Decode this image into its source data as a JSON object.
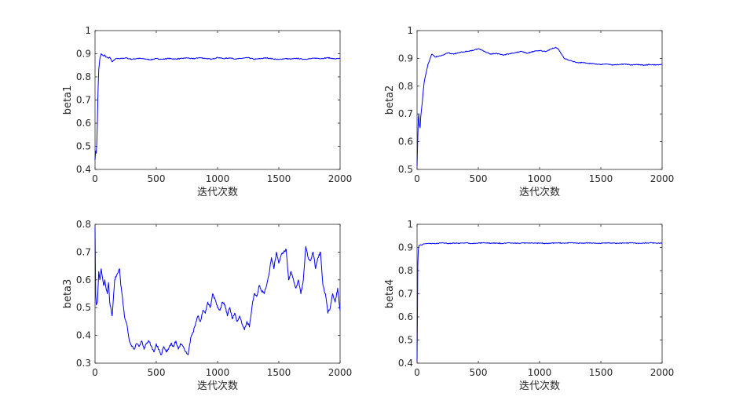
{
  "chart_data": [
    {
      "type": "line",
      "xlabel": "迭代次数",
      "ylabel": "beta1",
      "xlim": [
        0,
        2000
      ],
      "ylim": [
        0.4,
        1
      ],
      "xticks": [
        "0",
        "500",
        "1000",
        "1500",
        "2000"
      ],
      "yticks": [
        "0.4",
        "0.5",
        "0.6",
        "0.7",
        "0.8",
        "0.9",
        "1"
      ],
      "color": "#0000ff",
      "grid": false,
      "x": [
        0,
        5,
        10,
        15,
        20,
        25,
        30,
        40,
        50,
        60,
        70,
        80,
        90,
        100,
        110,
        120,
        130,
        140,
        150,
        160,
        180,
        200,
        250,
        300,
        350,
        400,
        450,
        500,
        550,
        600,
        650,
        700,
        750,
        800,
        850,
        900,
        950,
        1000,
        1050,
        1100,
        1150,
        1200,
        1250,
        1300,
        1350,
        1400,
        1450,
        1500,
        1550,
        1600,
        1650,
        1700,
        1750,
        1800,
        1850,
        1900,
        1950,
        2000
      ],
      "values": [
        0.44,
        0.48,
        0.47,
        0.52,
        0.62,
        0.75,
        0.83,
        0.88,
        0.9,
        0.895,
        0.89,
        0.895,
        0.885,
        0.885,
        0.88,
        0.885,
        0.875,
        0.865,
        0.87,
        0.875,
        0.88,
        0.878,
        0.882,
        0.876,
        0.88,
        0.878,
        0.874,
        0.879,
        0.876,
        0.88,
        0.877,
        0.879,
        0.882,
        0.878,
        0.883,
        0.88,
        0.876,
        0.884,
        0.879,
        0.882,
        0.877,
        0.88,
        0.883,
        0.876,
        0.879,
        0.882,
        0.878,
        0.875,
        0.879,
        0.877,
        0.88,
        0.876,
        0.878,
        0.881,
        0.879,
        0.883,
        0.878,
        0.879
      ]
    },
    {
      "type": "line",
      "xlabel": "迭代次数",
      "ylabel": "beta2",
      "xlim": [
        0,
        2000
      ],
      "ylim": [
        0.5,
        1
      ],
      "xticks": [
        "0",
        "500",
        "1000",
        "1500",
        "2000"
      ],
      "yticks": [
        "0.5",
        "0.6",
        "0.7",
        "0.8",
        "0.9",
        "1"
      ],
      "color": "#0000ff",
      "grid": false,
      "x": [
        0,
        5,
        10,
        15,
        20,
        25,
        30,
        40,
        50,
        60,
        70,
        80,
        90,
        100,
        120,
        150,
        200,
        250,
        300,
        350,
        400,
        450,
        500,
        550,
        600,
        650,
        700,
        750,
        800,
        850,
        900,
        950,
        1000,
        1050,
        1100,
        1130,
        1150,
        1180,
        1200,
        1250,
        1300,
        1350,
        1400,
        1450,
        1500,
        1550,
        1600,
        1650,
        1700,
        1750,
        1800,
        1850,
        1900,
        1950,
        2000
      ],
      "values": [
        0.51,
        0.6,
        0.68,
        0.7,
        0.66,
        0.65,
        0.69,
        0.73,
        0.78,
        0.82,
        0.84,
        0.86,
        0.88,
        0.89,
        0.915,
        0.905,
        0.91,
        0.92,
        0.915,
        0.922,
        0.925,
        0.928,
        0.935,
        0.925,
        0.915,
        0.918,
        0.912,
        0.916,
        0.92,
        0.925,
        0.918,
        0.925,
        0.928,
        0.925,
        0.935,
        0.94,
        0.935,
        0.915,
        0.9,
        0.892,
        0.885,
        0.885,
        0.882,
        0.88,
        0.878,
        0.88,
        0.876,
        0.878,
        0.88,
        0.876,
        0.878,
        0.875,
        0.878,
        0.876,
        0.878
      ]
    },
    {
      "type": "line",
      "xlabel": "迭代次数",
      "ylabel": "beta3",
      "xlim": [
        0,
        2000
      ],
      "ylim": [
        0.3,
        0.8
      ],
      "xticks": [
        "0",
        "500",
        "1000",
        "1500",
        "2000"
      ],
      "yticks": [
        "0.3",
        "0.4",
        "0.5",
        "0.6",
        "0.7",
        "0.8"
      ],
      "color": "#0000ff",
      "grid": false,
      "x": [
        0,
        5,
        10,
        20,
        30,
        40,
        50,
        60,
        70,
        80,
        90,
        100,
        110,
        120,
        140,
        160,
        180,
        200,
        210,
        220,
        240,
        260,
        280,
        300,
        320,
        340,
        360,
        380,
        400,
        420,
        440,
        460,
        480,
        500,
        520,
        540,
        560,
        580,
        600,
        620,
        640,
        660,
        680,
        700,
        720,
        740,
        760,
        780,
        800,
        820,
        840,
        860,
        880,
        900,
        920,
        940,
        960,
        980,
        1000,
        1020,
        1040,
        1060,
        1080,
        1100,
        1120,
        1140,
        1160,
        1180,
        1200,
        1220,
        1240,
        1260,
        1280,
        1300,
        1320,
        1340,
        1360,
        1380,
        1400,
        1420,
        1440,
        1460,
        1480,
        1500,
        1520,
        1540,
        1560,
        1580,
        1600,
        1620,
        1640,
        1660,
        1680,
        1700,
        1720,
        1740,
        1760,
        1780,
        1800,
        1820,
        1840,
        1860,
        1880,
        1900,
        1920,
        1940,
        1960,
        1980,
        2000
      ],
      "values": [
        0.79,
        0.55,
        0.51,
        0.52,
        0.63,
        0.6,
        0.64,
        0.61,
        0.58,
        0.6,
        0.57,
        0.55,
        0.59,
        0.52,
        0.47,
        0.6,
        0.62,
        0.64,
        0.58,
        0.55,
        0.47,
        0.44,
        0.38,
        0.36,
        0.35,
        0.37,
        0.36,
        0.38,
        0.35,
        0.37,
        0.38,
        0.36,
        0.34,
        0.37,
        0.35,
        0.33,
        0.36,
        0.34,
        0.35,
        0.37,
        0.36,
        0.38,
        0.35,
        0.37,
        0.36,
        0.34,
        0.33,
        0.39,
        0.41,
        0.44,
        0.47,
        0.45,
        0.49,
        0.48,
        0.52,
        0.5,
        0.55,
        0.53,
        0.5,
        0.49,
        0.52,
        0.51,
        0.47,
        0.5,
        0.46,
        0.48,
        0.45,
        0.47,
        0.44,
        0.42,
        0.45,
        0.43,
        0.5,
        0.55,
        0.54,
        0.58,
        0.56,
        0.55,
        0.58,
        0.62,
        0.68,
        0.64,
        0.7,
        0.66,
        0.69,
        0.7,
        0.71,
        0.6,
        0.63,
        0.6,
        0.57,
        0.6,
        0.55,
        0.6,
        0.72,
        0.68,
        0.67,
        0.7,
        0.64,
        0.68,
        0.7,
        0.58,
        0.55,
        0.48,
        0.5,
        0.55,
        0.52,
        0.57,
        0.49
      ]
    },
    {
      "type": "line",
      "xlabel": "迭代次数",
      "ylabel": "beta4",
      "xlim": [
        0,
        2000
      ],
      "ylim": [
        0.4,
        1
      ],
      "xticks": [
        "0",
        "500",
        "1000",
        "1500",
        "2000"
      ],
      "yticks": [
        "0.4",
        "0.5",
        "0.6",
        "0.7",
        "0.8",
        "0.9",
        "1"
      ],
      "color": "#0000ff",
      "grid": false,
      "x": [
        0,
        3,
        6,
        10,
        15,
        20,
        30,
        40,
        50,
        100,
        150,
        200,
        250,
        300,
        350,
        400,
        450,
        500,
        550,
        600,
        650,
        700,
        750,
        800,
        850,
        900,
        950,
        1000,
        1050,
        1100,
        1150,
        1200,
        1250,
        1300,
        1350,
        1400,
        1450,
        1500,
        1550,
        1600,
        1650,
        1700,
        1750,
        1800,
        1850,
        1900,
        1950,
        2000
      ],
      "values": [
        0.41,
        0.6,
        0.82,
        0.89,
        0.905,
        0.91,
        0.912,
        0.91,
        0.915,
        0.918,
        0.916,
        0.92,
        0.917,
        0.919,
        0.918,
        0.92,
        0.917,
        0.919,
        0.92,
        0.918,
        0.919,
        0.917,
        0.92,
        0.918,
        0.919,
        0.92,
        0.918,
        0.919,
        0.917,
        0.919,
        0.92,
        0.918,
        0.92,
        0.919,
        0.918,
        0.92,
        0.919,
        0.918,
        0.92,
        0.919,
        0.918,
        0.919,
        0.92,
        0.918,
        0.919,
        0.92,
        0.919,
        0.919
      ]
    }
  ]
}
